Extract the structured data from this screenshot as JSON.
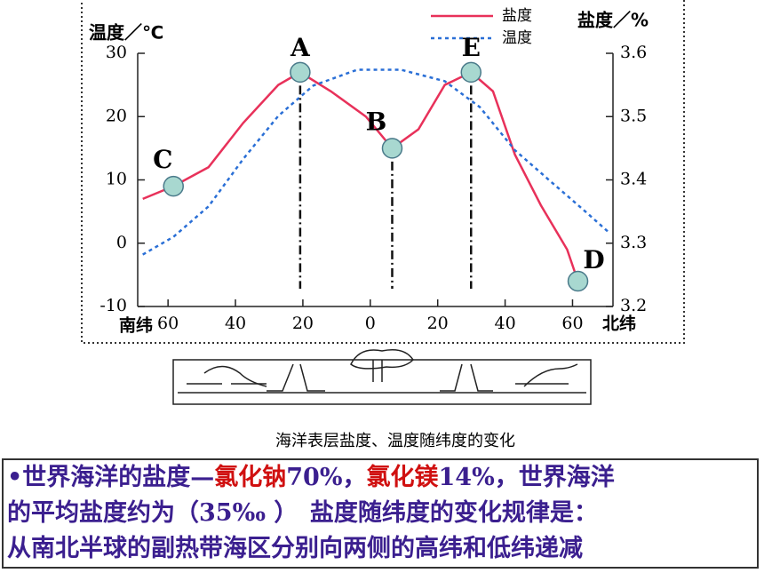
{
  "chart_data": {
    "type": "line",
    "y_label": "温度／℃",
    "y2_label": "盐度／%",
    "x_left_label": "南纬",
    "x_right_label": "北纬",
    "xlim": [
      -69,
      72
    ],
    "xticks": [
      {
        "value": -60,
        "label": "60"
      },
      {
        "value": -40,
        "label": "40"
      },
      {
        "value": -20,
        "label": "20"
      },
      0,
      20,
      40,
      60
    ],
    "ylim": [
      -10,
      30
    ],
    "yticks": [
      -10,
      0,
      10,
      20,
      30
    ],
    "y2lim": [
      3.2,
      3.6
    ],
    "y2ticks": [
      3.2,
      3.3,
      3.4,
      3.5,
      3.6
    ],
    "series": [
      {
        "name": "盐度",
        "color": "#e8315a",
        "dash": false,
        "axis": "y2",
        "x": [
          -67.5,
          -58.4,
          -48,
          -37.7,
          -27.3,
          -20.8,
          -11.7,
          -1.3,
          6.5,
          14.3,
          22.1,
          29.9,
          36.4,
          42.9,
          50.6,
          58.4,
          61.6
        ],
        "values": [
          3.37,
          3.39,
          3.42,
          3.49,
          3.55,
          3.57,
          3.54,
          3.5,
          3.45,
          3.48,
          3.55,
          3.57,
          3.54,
          3.44,
          3.36,
          3.29,
          3.24
        ]
      },
      {
        "name": "温度",
        "color": "#2a6fd6",
        "dash": true,
        "axis": "y",
        "x": [
          -67.5,
          -58.4,
          -48,
          -37.7,
          -27.3,
          -16.9,
          -3.9,
          9.1,
          22.1,
          32.5,
          42.9,
          53.2,
          63.6,
          71
        ],
        "values": [
          -1.8,
          1,
          5.8,
          13.3,
          20.1,
          24.9,
          27.4,
          27.4,
          25.6,
          21.5,
          14.7,
          9.9,
          5.1,
          1.6
        ]
      }
    ],
    "annotations": [
      {
        "text": "A",
        "x": -20.8,
        "y": 3.57,
        "drop": true
      },
      {
        "text": "B",
        "x": 6.5,
        "y": 3.45,
        "drop": true
      },
      {
        "text": "C",
        "x": -58.4,
        "y": 3.39,
        "drop": false
      },
      {
        "text": "D",
        "x": 61.6,
        "y": 3.24,
        "drop": false
      },
      {
        "text": "E",
        "x": 29.9,
        "y": 3.57,
        "drop": true
      }
    ],
    "caption": "海洋表层盐度、温度随纬度的变化"
  },
  "text_box": {
    "lines": [
      [
        {
          "text": "•世界海洋的盐度—",
          "color": "#3b1f8f"
        },
        {
          "text": "氯化钠",
          "color": "#d01010"
        },
        {
          "text": "70%，",
          "color": "#3b1f8f"
        },
        {
          "text": "氯化镁",
          "color": "#d01010"
        },
        {
          "text": "14%，世界海洋",
          "color": "#3b1f8f"
        }
      ],
      [
        {
          "text": "的平均盐度约为（35‰ ）　盐度随纬度的变化规律是：",
          "color": "#3b1f8f"
        }
      ],
      [
        {
          "text": "从南北半球的副热带海区分别向两侧的高纬和低纬递减",
          "color": "#3b1f8f"
        }
      ]
    ]
  }
}
